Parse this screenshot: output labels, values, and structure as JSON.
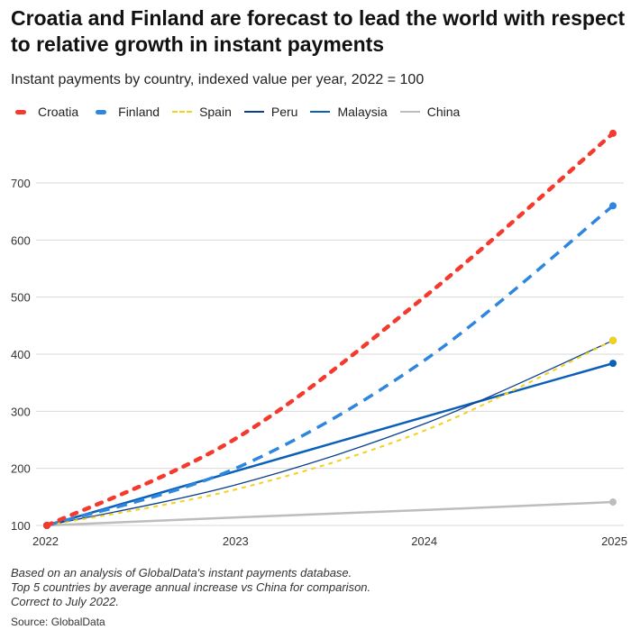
{
  "chart_data": {
    "type": "line",
    "title": "Croatia and Finland are forecast to lead the world with respect to relative growth in instant payments",
    "subtitle": "Instant payments by country, indexed value per year, 2022 = 100",
    "x": [
      "2022",
      "2023",
      "2024",
      "2025"
    ],
    "ylim": [
      100,
      700
    ],
    "yticks": [
      100,
      200,
      300,
      400,
      500,
      600,
      700
    ],
    "grid": true,
    "legend": "top-left",
    "series": [
      {
        "name": "Croatia",
        "values": [
          100,
          252,
          500,
          787
        ],
        "color": "#f43a2d",
        "style": "dotted-thick"
      },
      {
        "name": "Finland",
        "values": [
          100,
          200,
          389,
          660
        ],
        "color": "#2e86de",
        "style": "dashed"
      },
      {
        "name": "Spain",
        "values": [
          100,
          163,
          266,
          424
        ],
        "color": "#f2d21b",
        "style": "dashed-thin"
      },
      {
        "name": "Peru",
        "values": [
          100,
          171,
          278,
          424
        ],
        "color": "#0a3f8f",
        "style": "solid-thin"
      },
      {
        "name": "Malaysia",
        "values": [
          100,
          195,
          290,
          384
        ],
        "color": "#0b5fb8",
        "style": "solid"
      },
      {
        "name": "China",
        "values": [
          100,
          114,
          127,
          141
        ],
        "color": "#bdbdbd",
        "style": "solid"
      }
    ]
  },
  "notes": [
    "Based on an analysis of GlobalData's instant payments database.",
    "Top 5 countries by average annual increase vs China for comparison.",
    "Correct to July 2022."
  ],
  "source": "Source: GlobalData"
}
